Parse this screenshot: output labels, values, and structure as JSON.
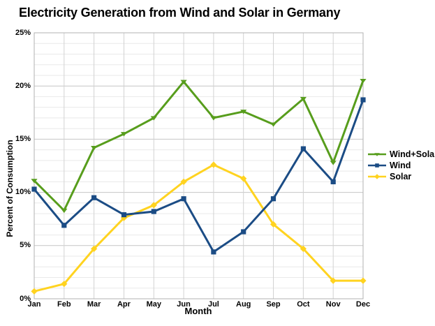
{
  "chart_data": {
    "type": "line",
    "title": "Electricity Generation from Wind and Solar in Germany",
    "xlabel": "Month",
    "ylabel": "Percent of Consumption",
    "x": [
      "Jan",
      "Feb",
      "Mar",
      "Apr",
      "May",
      "Jun",
      "Jul",
      "Aug",
      "Sep",
      "Oct",
      "Nov",
      "Dec"
    ],
    "ylim": [
      0,
      25
    ],
    "y_ticks": [
      0,
      5,
      10,
      15,
      20,
      25
    ],
    "y_tick_labels": [
      "0%",
      "5%",
      "10%",
      "15%",
      "20%",
      "25%"
    ],
    "y_minor_step": 1,
    "grid": true,
    "legend_position": "right",
    "series": [
      {
        "name": "Wind+Solar",
        "color": "#579D1C",
        "marker": "triangle",
        "values": [
          11.1,
          8.3,
          14.2,
          15.5,
          17.0,
          20.4,
          17.0,
          17.6,
          16.4,
          18.8,
          12.8,
          20.5
        ]
      },
      {
        "name": "Wind",
        "color": "#1B4C85",
        "marker": "square",
        "values": [
          10.3,
          6.9,
          9.5,
          7.9,
          8.2,
          9.4,
          4.4,
          6.3,
          9.4,
          14.1,
          11.0,
          18.7
        ]
      },
      {
        "name": "Solar",
        "color": "#FFD320",
        "marker": "diamond",
        "values": [
          0.7,
          1.4,
          4.7,
          7.6,
          8.8,
          11.0,
          12.6,
          11.3,
          7.0,
          4.7,
          1.7,
          1.7
        ]
      }
    ]
  }
}
